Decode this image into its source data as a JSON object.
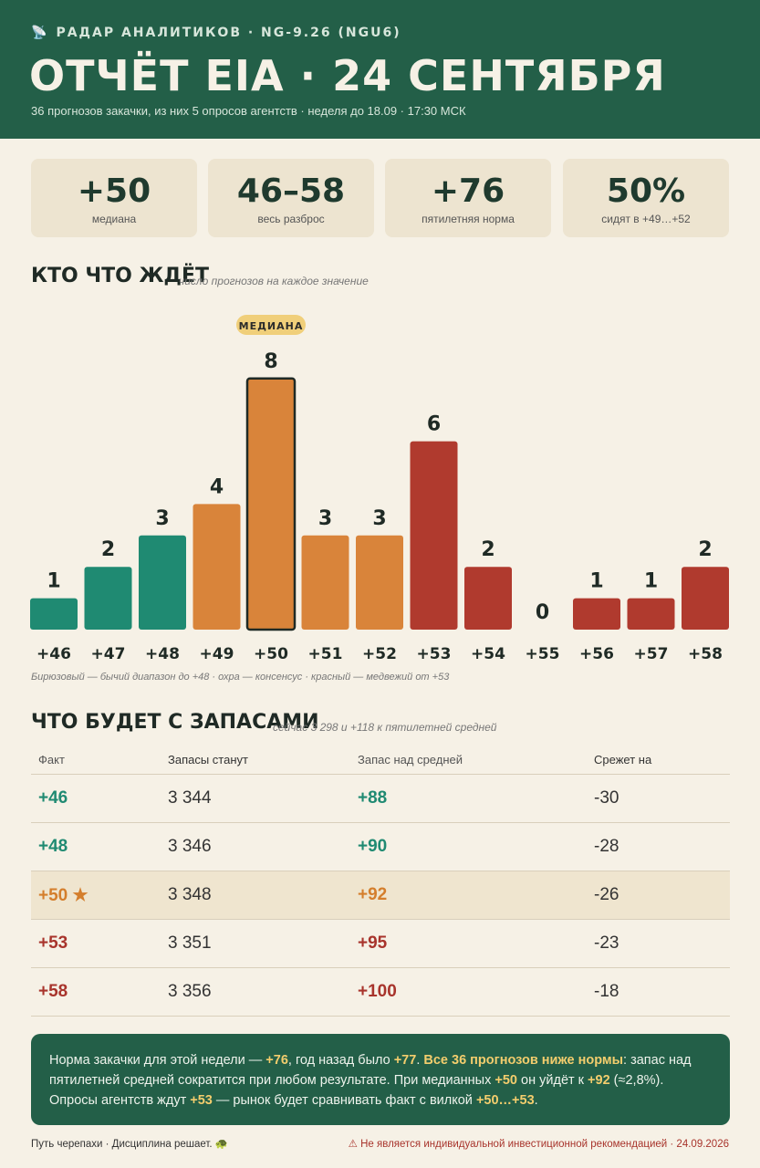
{
  "header": {
    "kicker_icon": "satellite-icon",
    "kicker": "РАДАР АНАЛИТИКОВ · NG-9.26 (NGU6)",
    "title": "ОТЧЁТ EIA · 24 СЕНТЯБРЯ",
    "subline": "36 прогнозов закачки, из них 5 опросов агентств · неделя до 18.09 · 17:30 МСК"
  },
  "stats": [
    {
      "value": "+50",
      "label": "медиана"
    },
    {
      "value": "46–58",
      "label": "весь разброс"
    },
    {
      "value": "+76",
      "label": "пятилетняя норма"
    },
    {
      "value": "50%",
      "label": "сидят в +49…+52"
    }
  ],
  "section1": {
    "title": "КТО ЧТО ЖДЁТ",
    "note": "число прогнозов на каждое значение"
  },
  "chart_data": {
    "type": "bar",
    "categories": [
      "+46",
      "+47",
      "+48",
      "+49",
      "+50",
      "+51",
      "+52",
      "+53",
      "+54",
      "+55",
      "+56",
      "+57",
      "+58"
    ],
    "values": [
      1,
      2,
      3,
      4,
      8,
      3,
      3,
      6,
      2,
      0,
      1,
      1,
      2
    ],
    "median_badge": "МЕДИАНА",
    "median_category": "+50",
    "ylim": [
      0,
      8
    ],
    "colors": {
      "bull": "#1f8a72",
      "consensus": "#d9843a",
      "bear": "#b03a2e"
    },
    "bar_groups": [
      "bull",
      "bull",
      "bull",
      "consensus",
      "consensus",
      "consensus",
      "consensus",
      "bear",
      "bear",
      "bear",
      "bear",
      "bear",
      "bear"
    ],
    "legend_note": "Бирюзовый — бычий диапазон до +48 · охра — консенсус · красный — медвежий от +53"
  },
  "section2": {
    "title": "ЧТО БУДЕТ С ЗАПАСАМИ",
    "note": "сейчас 3 298 и +118 к пятилетней средней"
  },
  "table": {
    "headers": [
      "Факт",
      "Запасы станут",
      "Запас над средней",
      "Срежет на"
    ],
    "rows": [
      {
        "fact": "+46",
        "stocks": "3 344",
        "surplus": "+88",
        "cut": "-30",
        "tone": "green"
      },
      {
        "fact": "+48",
        "stocks": "3 346",
        "surplus": "+90",
        "cut": "-28",
        "tone": "green"
      },
      {
        "fact": "+50 ★",
        "stocks": "3 348",
        "surplus": "+92",
        "cut": "-26",
        "tone": "orange",
        "highlight": true
      },
      {
        "fact": "+53",
        "stocks": "3 351",
        "surplus": "+95",
        "cut": "-23",
        "tone": "red"
      },
      {
        "fact": "+58",
        "stocks": "3 356",
        "surplus": "+100",
        "cut": "-18",
        "tone": "red"
      }
    ]
  },
  "note": {
    "p1": "Норма закачки для этой недели — ",
    "h1": "+76",
    "p2": ", год назад было ",
    "h2": "+77",
    "p3": ". ",
    "h3": "Все 36 прогнозов ниже нормы",
    "p4": ": запас над пятилетней средней сократится при любом результате. При медианных ",
    "h4": "+50",
    "p5": " он уйдёт к ",
    "h5": "+92",
    "p6": " (≈2,8%). Опросы агентств ждут ",
    "h6": "+53",
    "p7": " — рынок будет сравнивать факт с вилкой ",
    "h7": "+50…+53",
    "p8": "."
  },
  "footer": {
    "left": "Путь черепахи · Дисциплина решает. 🐢",
    "right": "⚠ Не является индивидуальной инвестиционной рекомендацией · 24.09.2026"
  }
}
